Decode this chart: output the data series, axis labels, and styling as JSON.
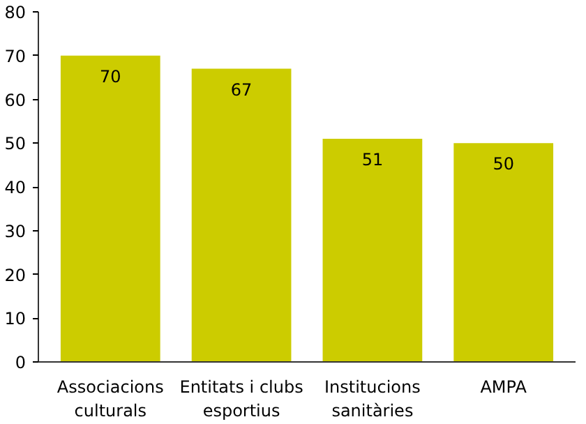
{
  "chart_data": {
    "type": "bar",
    "categories": [
      "Associacions\nculturals",
      "Entitats i clubs\nesportius",
      "Institucions\nsanitàries",
      "AMPA"
    ],
    "values": [
      70,
      67,
      51,
      50
    ],
    "color": "#cccc00",
    "ylim": [
      0,
      80
    ],
    "yticks": [
      0,
      10,
      20,
      30,
      40,
      50,
      60,
      70,
      80
    ],
    "grid": false,
    "data_labels": true
  }
}
